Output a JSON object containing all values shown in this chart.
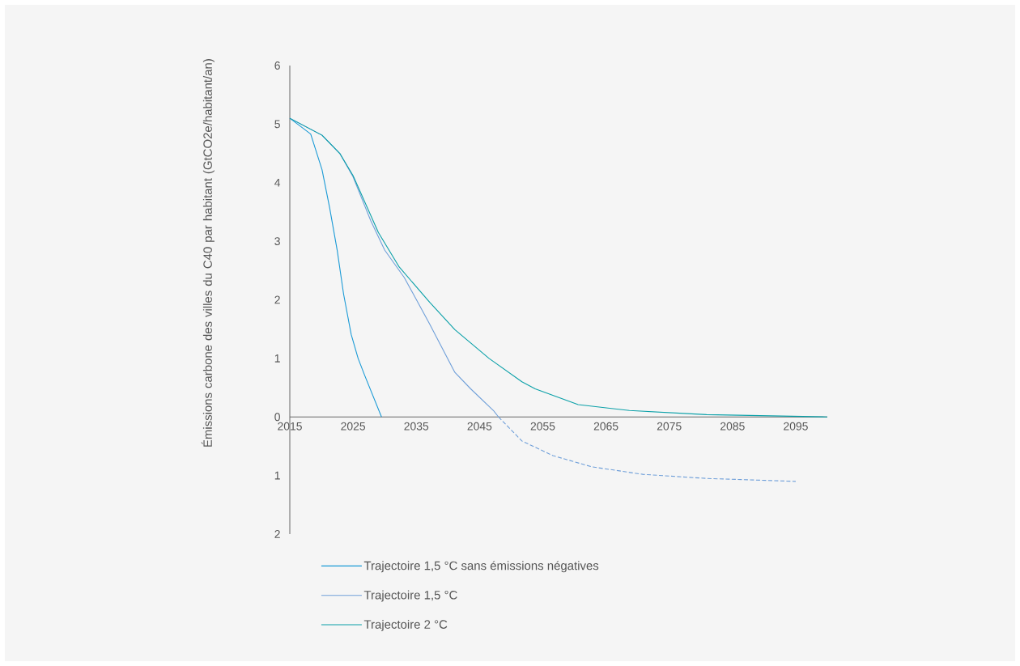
{
  "chart_data": {
    "type": "line",
    "ylabel": "Émissions carbone des villes du C40 par habitant (GtCO2e/habitant/an)",
    "xlim": [
      2015,
      2100
    ],
    "ylim": [
      -2,
      6
    ],
    "xticks": [
      2015,
      2025,
      2035,
      2045,
      2055,
      2065,
      2075,
      2085,
      2095
    ],
    "yticks": [
      {
        "value": -2,
        "label": "2"
      },
      {
        "value": -1,
        "label": "1"
      },
      0,
      1,
      2,
      3,
      4,
      5,
      6
    ],
    "legend": "bottom",
    "marker": "none",
    "line_style": "solid",
    "series": [
      {
        "name": "Trajectoire 1,5 °C sans émissions négatives",
        "color": "#1a9ad6",
        "x": [
          2015,
          2018.3,
          2020.1,
          2021.3,
          2022.5,
          2023.5,
          2024.7,
          2025.8,
          2026.8,
          2029.5
        ],
        "values": [
          5.1,
          4.83,
          4.22,
          3.57,
          2.84,
          2.1,
          1.41,
          1.0,
          0.72,
          0
        ]
      },
      {
        "name": "Trajectoire 1,5 °C",
        "color": "#6f9fd9",
        "x": [
          2015,
          2020.1,
          2022.9,
          2025,
          2027.8,
          2030,
          2033.1,
          2037.1,
          2041.1,
          2043.6,
          2047.2,
          2048
        ],
        "values": [
          5.1,
          4.81,
          4.5,
          4.1,
          3.35,
          2.85,
          2.38,
          1.59,
          0.76,
          0.48,
          0.11,
          0
        ]
      },
      {
        "color": "#6f9fd9",
        "line_style": "dashed",
        "x": [
          2048,
          2051.7,
          2056.6,
          2062.7,
          2070.8,
          2080.9,
          2095
        ],
        "values": [
          0,
          -0.41,
          -0.66,
          -0.85,
          -0.98,
          -1.05,
          -1.1
        ]
      },
      {
        "name": "Trajectoire 2 °C",
        "color": "#0aa0a8",
        "x": [
          2015,
          2020.1,
          2022.9,
          2025,
          2029,
          2032.3,
          2037.1,
          2041.1,
          2046.5,
          2051.7,
          2053.8,
          2060.6,
          2068.7,
          2080.9,
          2100
        ],
        "values": [
          5.1,
          4.81,
          4.5,
          4.12,
          3.15,
          2.56,
          1.96,
          1.49,
          1.0,
          0.6,
          0.48,
          0.21,
          0.11,
          0.04,
          0
        ]
      }
    ]
  }
}
